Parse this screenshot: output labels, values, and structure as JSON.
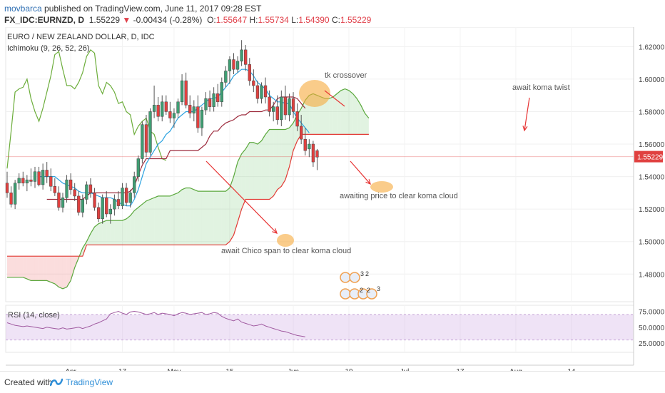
{
  "header": {
    "author": "movbarca",
    "published_text": "published on TradingView.com, June 11, 2017 09:28 EST",
    "symbol": "FX_IDC:EURNZD, D",
    "last": "1.55229",
    "change": "-0.00434 (-0.28%)",
    "o_label": "O:",
    "o": "1.55647",
    "h_label": "H:",
    "h": "1.55734",
    "l_label": "L:",
    "l": "1.54390",
    "c_label": "C:",
    "c": "1.55229",
    "down_glyph": "▼"
  },
  "legend": {
    "title": "EURO / NEW ZEALAND DOLLAR, D, IDC",
    "indicator": "Ichimoku (9, 26, 52, 26)"
  },
  "rsi_panel": {
    "label": "RSI (14, close)",
    "ticks": [
      75,
      50,
      25
    ],
    "tick_labels": [
      "75.0000",
      "50.0000",
      "25.0000"
    ],
    "band": [
      30,
      70
    ],
    "values": [
      57,
      55,
      53,
      52,
      51,
      52,
      51,
      50,
      49,
      48,
      50,
      49,
      48,
      47,
      49,
      47,
      48,
      49,
      50,
      48,
      50,
      52,
      55,
      57,
      60,
      63,
      71,
      73,
      75,
      72,
      70,
      74,
      75,
      74,
      72,
      70,
      71,
      73,
      70,
      72,
      71,
      70,
      68,
      71,
      73,
      72,
      70,
      71,
      72,
      73,
      70,
      71,
      73,
      72,
      67,
      64,
      62,
      60,
      63,
      58,
      56,
      54,
      52,
      53,
      55,
      52,
      50,
      48,
      46,
      44,
      43,
      41,
      39,
      37,
      36,
      35
    ]
  },
  "annotations": {
    "tk_crossover": "tk crossover",
    "await_koma_twist": "await koma twist",
    "awaiting_price": "awaiting price to clear koma cloud",
    "await_chico": "await Chico span to clear koma cloud"
  },
  "badges": {
    "row1_a": "3",
    "row1_b": "2",
    "row2_a": "2",
    "row2_b": "2",
    "row2_c": "3"
  },
  "footer": {
    "created_with": "Created with",
    "brand": "TradingView"
  },
  "colors": {
    "bull": "#3f9e73",
    "bear": "#e0403f",
    "tenkan": "#2ba2e0",
    "kijun": "#9c2a3c",
    "span_a": "#5aa83c",
    "span_b": "#e23b35",
    "chikou": "#6cad3b",
    "cloud_bull": "rgba(120,200,120,0.22)",
    "cloud_bear": "rgba(240,120,120,0.25)",
    "annotation": "#e73434",
    "highlight": "rgba(247,170,60,0.6)",
    "rsi_line": "#a05aa0",
    "rsi_band": "rgba(210,175,230,0.35)"
  },
  "chart_data": {
    "type": "candlestick",
    "title": "EURO / NEW ZEALAND DOLLAR, D, IDC",
    "y_ticks": [
      1.48,
      1.5,
      1.52,
      1.54,
      1.56,
      1.58,
      1.6,
      1.62
    ],
    "y_tick_labels": [
      "1.48000",
      "1.50000",
      "1.52000",
      "1.54000",
      "1.56000",
      "1.58000",
      "1.60000",
      "1.62000"
    ],
    "ylim": [
      1.463,
      1.632
    ],
    "last_price": 1.55229,
    "last_price_label": "1.55229",
    "x_tick_labels": [
      {
        "label": "Apr",
        "index": 16
      },
      {
        "label": "17",
        "index": 29
      },
      {
        "label": "May",
        "index": 42
      },
      {
        "label": "15",
        "index": 56
      },
      {
        "label": "Jun",
        "index": 72
      },
      {
        "label": "19",
        "index": 86
      },
      {
        "label": "Jul",
        "index": 100
      },
      {
        "label": "17",
        "index": 114
      },
      {
        "label": "Aug",
        "index": 128
      },
      {
        "label": "14",
        "index": 142
      }
    ],
    "candles_x_start": 0,
    "candles": [
      {
        "o": 1.536,
        "h": 1.543,
        "l": 1.527,
        "c": 1.53
      },
      {
        "o": 1.53,
        "h": 1.534,
        "l": 1.521,
        "c": 1.523
      },
      {
        "o": 1.523,
        "h": 1.538,
        "l": 1.52,
        "c": 1.536
      },
      {
        "o": 1.536,
        "h": 1.542,
        "l": 1.532,
        "c": 1.539
      },
      {
        "o": 1.539,
        "h": 1.543,
        "l": 1.534,
        "c": 1.536
      },
      {
        "o": 1.536,
        "h": 1.541,
        "l": 1.531,
        "c": 1.538
      },
      {
        "o": 1.538,
        "h": 1.545,
        "l": 1.534,
        "c": 1.537
      },
      {
        "o": 1.537,
        "h": 1.546,
        "l": 1.533,
        "c": 1.543
      },
      {
        "o": 1.543,
        "h": 1.546,
        "l": 1.534,
        "c": 1.535
      },
      {
        "o": 1.535,
        "h": 1.548,
        "l": 1.532,
        "c": 1.544
      },
      {
        "o": 1.544,
        "h": 1.549,
        "l": 1.536,
        "c": 1.54
      },
      {
        "o": 1.54,
        "h": 1.545,
        "l": 1.531,
        "c": 1.534
      },
      {
        "o": 1.534,
        "h": 1.539,
        "l": 1.528,
        "c": 1.53
      },
      {
        "o": 1.53,
        "h": 1.534,
        "l": 1.519,
        "c": 1.521
      },
      {
        "o": 1.521,
        "h": 1.53,
        "l": 1.518,
        "c": 1.527
      },
      {
        "o": 1.527,
        "h": 1.541,
        "l": 1.524,
        "c": 1.538
      },
      {
        "o": 1.538,
        "h": 1.542,
        "l": 1.529,
        "c": 1.532
      },
      {
        "o": 1.532,
        "h": 1.536,
        "l": 1.525,
        "c": 1.528
      },
      {
        "o": 1.528,
        "h": 1.531,
        "l": 1.516,
        "c": 1.518
      },
      {
        "o": 1.518,
        "h": 1.529,
        "l": 1.515,
        "c": 1.526
      },
      {
        "o": 1.526,
        "h": 1.537,
        "l": 1.523,
        "c": 1.535
      },
      {
        "o": 1.535,
        "h": 1.539,
        "l": 1.527,
        "c": 1.53
      },
      {
        "o": 1.53,
        "h": 1.533,
        "l": 1.519,
        "c": 1.521
      },
      {
        "o": 1.521,
        "h": 1.524,
        "l": 1.512,
        "c": 1.514
      },
      {
        "o": 1.514,
        "h": 1.529,
        "l": 1.511,
        "c": 1.527
      },
      {
        "o": 1.527,
        "h": 1.531,
        "l": 1.515,
        "c": 1.517
      },
      {
        "o": 1.517,
        "h": 1.523,
        "l": 1.511,
        "c": 1.52
      },
      {
        "o": 1.52,
        "h": 1.529,
        "l": 1.516,
        "c": 1.526
      },
      {
        "o": 1.526,
        "h": 1.531,
        "l": 1.52,
        "c": 1.522
      },
      {
        "o": 1.522,
        "h": 1.536,
        "l": 1.52,
        "c": 1.533
      },
      {
        "o": 1.533,
        "h": 1.536,
        "l": 1.522,
        "c": 1.524
      },
      {
        "o": 1.524,
        "h": 1.532,
        "l": 1.521,
        "c": 1.53
      },
      {
        "o": 1.53,
        "h": 1.543,
        "l": 1.527,
        "c": 1.54
      },
      {
        "o": 1.54,
        "h": 1.553,
        "l": 1.537,
        "c": 1.551
      },
      {
        "o": 1.551,
        "h": 1.574,
        "l": 1.548,
        "c": 1.572
      },
      {
        "o": 1.572,
        "h": 1.578,
        "l": 1.552,
        "c": 1.555
      },
      {
        "o": 1.555,
        "h": 1.582,
        "l": 1.553,
        "c": 1.58
      },
      {
        "o": 1.58,
        "h": 1.596,
        "l": 1.576,
        "c": 1.584
      },
      {
        "o": 1.584,
        "h": 1.589,
        "l": 1.574,
        "c": 1.577
      },
      {
        "o": 1.577,
        "h": 1.59,
        "l": 1.574,
        "c": 1.586
      },
      {
        "o": 1.586,
        "h": 1.59,
        "l": 1.578,
        "c": 1.58
      },
      {
        "o": 1.58,
        "h": 1.586,
        "l": 1.573,
        "c": 1.576
      },
      {
        "o": 1.576,
        "h": 1.582,
        "l": 1.57,
        "c": 1.579
      },
      {
        "o": 1.579,
        "h": 1.588,
        "l": 1.576,
        "c": 1.586
      },
      {
        "o": 1.586,
        "h": 1.603,
        "l": 1.584,
        "c": 1.599
      },
      {
        "o": 1.599,
        "h": 1.604,
        "l": 1.582,
        "c": 1.584
      },
      {
        "o": 1.584,
        "h": 1.59,
        "l": 1.576,
        "c": 1.579
      },
      {
        "o": 1.579,
        "h": 1.587,
        "l": 1.574,
        "c": 1.583
      },
      {
        "o": 1.583,
        "h": 1.59,
        "l": 1.567,
        "c": 1.57
      },
      {
        "o": 1.57,
        "h": 1.583,
        "l": 1.565,
        "c": 1.581
      },
      {
        "o": 1.581,
        "h": 1.592,
        "l": 1.578,
        "c": 1.588
      },
      {
        "o": 1.588,
        "h": 1.593,
        "l": 1.58,
        "c": 1.583
      },
      {
        "o": 1.583,
        "h": 1.595,
        "l": 1.58,
        "c": 1.591
      },
      {
        "o": 1.591,
        "h": 1.597,
        "l": 1.583,
        "c": 1.586
      },
      {
        "o": 1.586,
        "h": 1.601,
        "l": 1.583,
        "c": 1.598
      },
      {
        "o": 1.598,
        "h": 1.608,
        "l": 1.595,
        "c": 1.605
      },
      {
        "o": 1.605,
        "h": 1.614,
        "l": 1.597,
        "c": 1.612
      },
      {
        "o": 1.612,
        "h": 1.616,
        "l": 1.603,
        "c": 1.606
      },
      {
        "o": 1.606,
        "h": 1.614,
        "l": 1.604,
        "c": 1.611
      },
      {
        "o": 1.611,
        "h": 1.624,
        "l": 1.608,
        "c": 1.618
      },
      {
        "o": 1.618,
        "h": 1.621,
        "l": 1.605,
        "c": 1.609
      },
      {
        "o": 1.609,
        "h": 1.613,
        "l": 1.596,
        "c": 1.599
      },
      {
        "o": 1.599,
        "h": 1.606,
        "l": 1.592,
        "c": 1.596
      },
      {
        "o": 1.596,
        "h": 1.599,
        "l": 1.585,
        "c": 1.588
      },
      {
        "o": 1.588,
        "h": 1.598,
        "l": 1.585,
        "c": 1.596
      },
      {
        "o": 1.596,
        "h": 1.601,
        "l": 1.585,
        "c": 1.589
      },
      {
        "o": 1.589,
        "h": 1.593,
        "l": 1.577,
        "c": 1.58
      },
      {
        "o": 1.58,
        "h": 1.586,
        "l": 1.574,
        "c": 1.583
      },
      {
        "o": 1.583,
        "h": 1.59,
        "l": 1.572,
        "c": 1.575
      },
      {
        "o": 1.575,
        "h": 1.593,
        "l": 1.571,
        "c": 1.589
      },
      {
        "o": 1.589,
        "h": 1.596,
        "l": 1.575,
        "c": 1.578
      },
      {
        "o": 1.578,
        "h": 1.591,
        "l": 1.574,
        "c": 1.588
      },
      {
        "o": 1.588,
        "h": 1.592,
        "l": 1.576,
        "c": 1.58
      },
      {
        "o": 1.58,
        "h": 1.585,
        "l": 1.568,
        "c": 1.571
      },
      {
        "o": 1.571,
        "h": 1.578,
        "l": 1.56,
        "c": 1.563
      },
      {
        "o": 1.563,
        "h": 1.57,
        "l": 1.553,
        "c": 1.556
      },
      {
        "o": 1.557,
        "h": 1.563,
        "l": 1.552,
        "c": 1.56
      },
      {
        "o": 1.56,
        "h": 1.562,
        "l": 1.546,
        "c": 1.549
      },
      {
        "o": 1.556,
        "h": 1.557,
        "l": 1.544,
        "c": 1.552
      }
    ],
    "tenkan": {
      "start": 8,
      "values": [
        1.54,
        1.54,
        1.54,
        1.54,
        1.54,
        1.538,
        1.536,
        1.535,
        1.534,
        1.533,
        1.531,
        1.53,
        1.53,
        1.53,
        1.529,
        1.528,
        1.527,
        1.527,
        1.527,
        1.526,
        1.524,
        1.523,
        1.522,
        1.522,
        1.526,
        1.532,
        1.54,
        1.548,
        1.552,
        1.556,
        1.56,
        1.562,
        1.566,
        1.568,
        1.572,
        1.576,
        1.578,
        1.58,
        1.58,
        1.58,
        1.582,
        1.584,
        1.586,
        1.588,
        1.588,
        1.589,
        1.592,
        1.595,
        1.598,
        1.602,
        1.604,
        1.606,
        1.606,
        1.605,
        1.602,
        1.598,
        1.596,
        1.594,
        1.59,
        1.588,
        1.586,
        1.586,
        1.585,
        1.585,
        1.58,
        1.576,
        1.573,
        1.57,
        1.567
      ]
    },
    "kijun": {
      "start": 10,
      "values": [
        1.526,
        1.526,
        1.526,
        1.526,
        1.526,
        1.526,
        1.526,
        1.526,
        1.526,
        1.526,
        1.528,
        1.53,
        1.53,
        1.53,
        1.53,
        1.53,
        1.53,
        1.53,
        1.53,
        1.53,
        1.53,
        1.531,
        1.534,
        1.541,
        1.547,
        1.551,
        1.551,
        1.551,
        1.551,
        1.551,
        1.551,
        1.556,
        1.556,
        1.556,
        1.556,
        1.556,
        1.556,
        1.556,
        1.556,
        1.558,
        1.56,
        1.565,
        1.568,
        1.568,
        1.571,
        1.573,
        1.574,
        1.575,
        1.577,
        1.578,
        1.578,
        1.58,
        1.58,
        1.58,
        1.58,
        1.581,
        1.581,
        1.584,
        1.588,
        1.589,
        1.589,
        1.589,
        1.589,
        1.588,
        1.585,
        1.582
      ]
    },
    "span_a": {
      "start": 0,
      "values": [
        1.478,
        1.478,
        1.478,
        1.478,
        1.478,
        1.477,
        1.476,
        1.476,
        1.476,
        1.476,
        1.476,
        1.475,
        1.474,
        1.472,
        1.471,
        1.472,
        1.476,
        1.484,
        1.49,
        1.496,
        1.5,
        1.505,
        1.509,
        1.511,
        1.512,
        1.513,
        1.513,
        1.513,
        1.513,
        1.513,
        1.514,
        1.516,
        1.519,
        1.521,
        1.523,
        1.525,
        1.526,
        1.527,
        1.528,
        1.528,
        1.528,
        1.528,
        1.529,
        1.53,
        1.532,
        1.533,
        1.533,
        1.532,
        1.531,
        1.531,
        1.531,
        1.531,
        1.531,
        1.531,
        1.531,
        1.531,
        1.533,
        1.54,
        1.549,
        1.554,
        1.557,
        1.561,
        1.561,
        1.56,
        1.562,
        1.566,
        1.569,
        1.569,
        1.569,
        1.569,
        1.569,
        1.57,
        1.573,
        1.578,
        1.582,
        1.587,
        1.59,
        1.591,
        1.59,
        1.589,
        1.588,
        1.588,
        1.589,
        1.591,
        1.593,
        1.594,
        1.593,
        1.591,
        1.588,
        1.584,
        1.579,
        1.576
      ]
    },
    "span_b": {
      "start": 0,
      "values": [
        1.491,
        1.491,
        1.491,
        1.491,
        1.491,
        1.491,
        1.491,
        1.491,
        1.491,
        1.491,
        1.491,
        1.491,
        1.491,
        1.491,
        1.491,
        1.491,
        1.491,
        1.491,
        1.491,
        1.491,
        1.498,
        1.498,
        1.498,
        1.498,
        1.498,
        1.498,
        1.498,
        1.498,
        1.498,
        1.498,
        1.498,
        1.498,
        1.498,
        1.498,
        1.498,
        1.498,
        1.498,
        1.498,
        1.498,
        1.498,
        1.498,
        1.498,
        1.498,
        1.498,
        1.498,
        1.498,
        1.498,
        1.498,
        1.498,
        1.498,
        1.498,
        1.498,
        1.498,
        1.498,
        1.498,
        1.498,
        1.5,
        1.504,
        1.512,
        1.52,
        1.526,
        1.526,
        1.526,
        1.526,
        1.526,
        1.526,
        1.526,
        1.528,
        1.532,
        1.534,
        1.538,
        1.546,
        1.556,
        1.562,
        1.566,
        1.566,
        1.566,
        1.566,
        1.566,
        1.566,
        1.566,
        1.566,
        1.566,
        1.566,
        1.566,
        1.566,
        1.566,
        1.566,
        1.566,
        1.566,
        1.566,
        1.566
      ]
    },
    "chikou": {
      "start": 0,
      "values": [
        1.545,
        1.568,
        1.592,
        1.594,
        1.595,
        1.6,
        1.588,
        1.58,
        1.574,
        1.582,
        1.592,
        1.602,
        1.615,
        1.617,
        1.606,
        1.596,
        1.596,
        1.594,
        1.598,
        1.604,
        1.614,
        1.618,
        1.616,
        1.596,
        1.591,
        1.598,
        1.596,
        1.592,
        1.585,
        1.586,
        1.58,
        1.578,
        1.566,
        1.571,
        1.574,
        1.576,
        1.568,
        1.566,
        1.558,
        1.551,
        1.55
      ]
    }
  }
}
